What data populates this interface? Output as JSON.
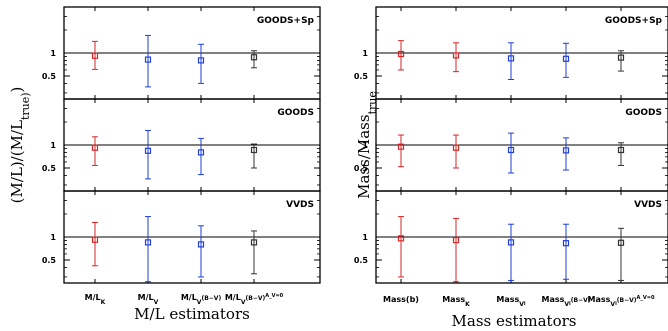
{
  "chart_data": [
    {
      "type": "scatter",
      "xlabel": "M/L estimators",
      "ylabel": "(M/L)/(M/L_true)",
      "y_scale": "log",
      "categories": [
        "M/L_K",
        "M/L_V",
        "M/L_V(B−V)",
        "M/L_V(B−V)^{A_V=0}"
      ],
      "ticks": [
        {
          "base": "M/L",
          "sub": "K",
          "sup": ""
        },
        {
          "base": "M/L",
          "sub": "V",
          "sup": ""
        },
        {
          "base": "M/L",
          "sub": "V",
          "rest": "(B−V)",
          "sup": ""
        },
        {
          "base": "M/L",
          "sub": "V",
          "rest": "(B−V)",
          "sup": "A_V=0"
        }
      ],
      "colors": [
        "#d62728",
        "#1f3fd6",
        "#1f3fd6",
        "#333333"
      ],
      "reference_line": 1,
      "ytick_labels": [
        "1",
        "0.5"
      ],
      "panels": [
        {
          "title": "GOODS+Sp",
          "ylim": [
            0.25,
            4.0
          ],
          "values": [
            0.92,
            0.82,
            0.8,
            0.88
          ],
          "err_low": [
            0.61,
            0.36,
            0.4,
            0.64
          ],
          "err_high": [
            1.42,
            1.7,
            1.3,
            1.07
          ]
        },
        {
          "title": "GOODS",
          "ylim": [
            0.25,
            4.0
          ],
          "values": [
            0.92,
            0.84,
            0.8,
            0.86
          ],
          "err_low": [
            0.54,
            0.36,
            0.41,
            0.5
          ],
          "err_high": [
            1.28,
            1.55,
            1.22,
            1.03
          ]
        },
        {
          "title": "VVDS",
          "ylim": [
            0.25,
            4.0
          ],
          "values": [
            0.92,
            0.85,
            0.8,
            0.85
          ],
          "err_low": [
            0.42,
            0.26,
            0.3,
            0.33
          ],
          "err_high": [
            1.55,
            1.85,
            1.4,
            1.2
          ]
        }
      ]
    },
    {
      "type": "scatter",
      "xlabel": "Mass estimators",
      "ylabel": "Mass/Mass_true",
      "y_scale": "log",
      "categories": [
        "Mass(b)",
        "Mass_K",
        "Mass_{V_i}",
        "Mass_{V_i(B−V)}",
        "Mass_{V_i(B−V)^{A_V=0}}"
      ],
      "ticks": [
        {
          "base": "Mass(b)",
          "sub": "",
          "sup": ""
        },
        {
          "base": "Mass",
          "sub": "K",
          "sup": ""
        },
        {
          "base": "Mass",
          "sub": "V",
          "subsub": "i",
          "sup": ""
        },
        {
          "base": "Mass",
          "sub": "V",
          "subsub": "i",
          "rest": "(B−V)",
          "sup": ""
        },
        {
          "base": "Mass",
          "sub": "V",
          "subsub": "i",
          "rest": "(B−V)",
          "sup": "A_V=0"
        }
      ],
      "colors": [
        "#d62728",
        "#d62728",
        "#1f3fd6",
        "#1f3fd6",
        "#333333"
      ],
      "reference_line": 1,
      "ytick_labels": [
        "1",
        "0.5"
      ],
      "panels": [
        {
          "title": "GOODS+Sp",
          "ylim": [
            0.25,
            4.0
          ],
          "values": [
            0.97,
            0.93,
            0.85,
            0.84,
            0.87
          ],
          "err_low": [
            0.6,
            0.57,
            0.45,
            0.48,
            0.58
          ],
          "err_high": [
            1.45,
            1.36,
            1.36,
            1.34,
            1.07
          ]
        },
        {
          "title": "GOODS",
          "ylim": [
            0.25,
            4.0
          ],
          "values": [
            0.95,
            0.92,
            0.86,
            0.85,
            0.86
          ],
          "err_low": [
            0.52,
            0.5,
            0.43,
            0.47,
            0.54
          ],
          "err_high": [
            1.35,
            1.35,
            1.43,
            1.24,
            1.07
          ]
        },
        {
          "title": "VVDS",
          "ylim": [
            0.25,
            4.0
          ],
          "values": [
            0.96,
            0.91,
            0.85,
            0.83,
            0.84
          ],
          "err_low": [
            0.3,
            0.26,
            0.27,
            0.28,
            0.27
          ],
          "err_high": [
            1.85,
            1.75,
            1.47,
            1.47,
            1.3
          ]
        }
      ]
    }
  ]
}
